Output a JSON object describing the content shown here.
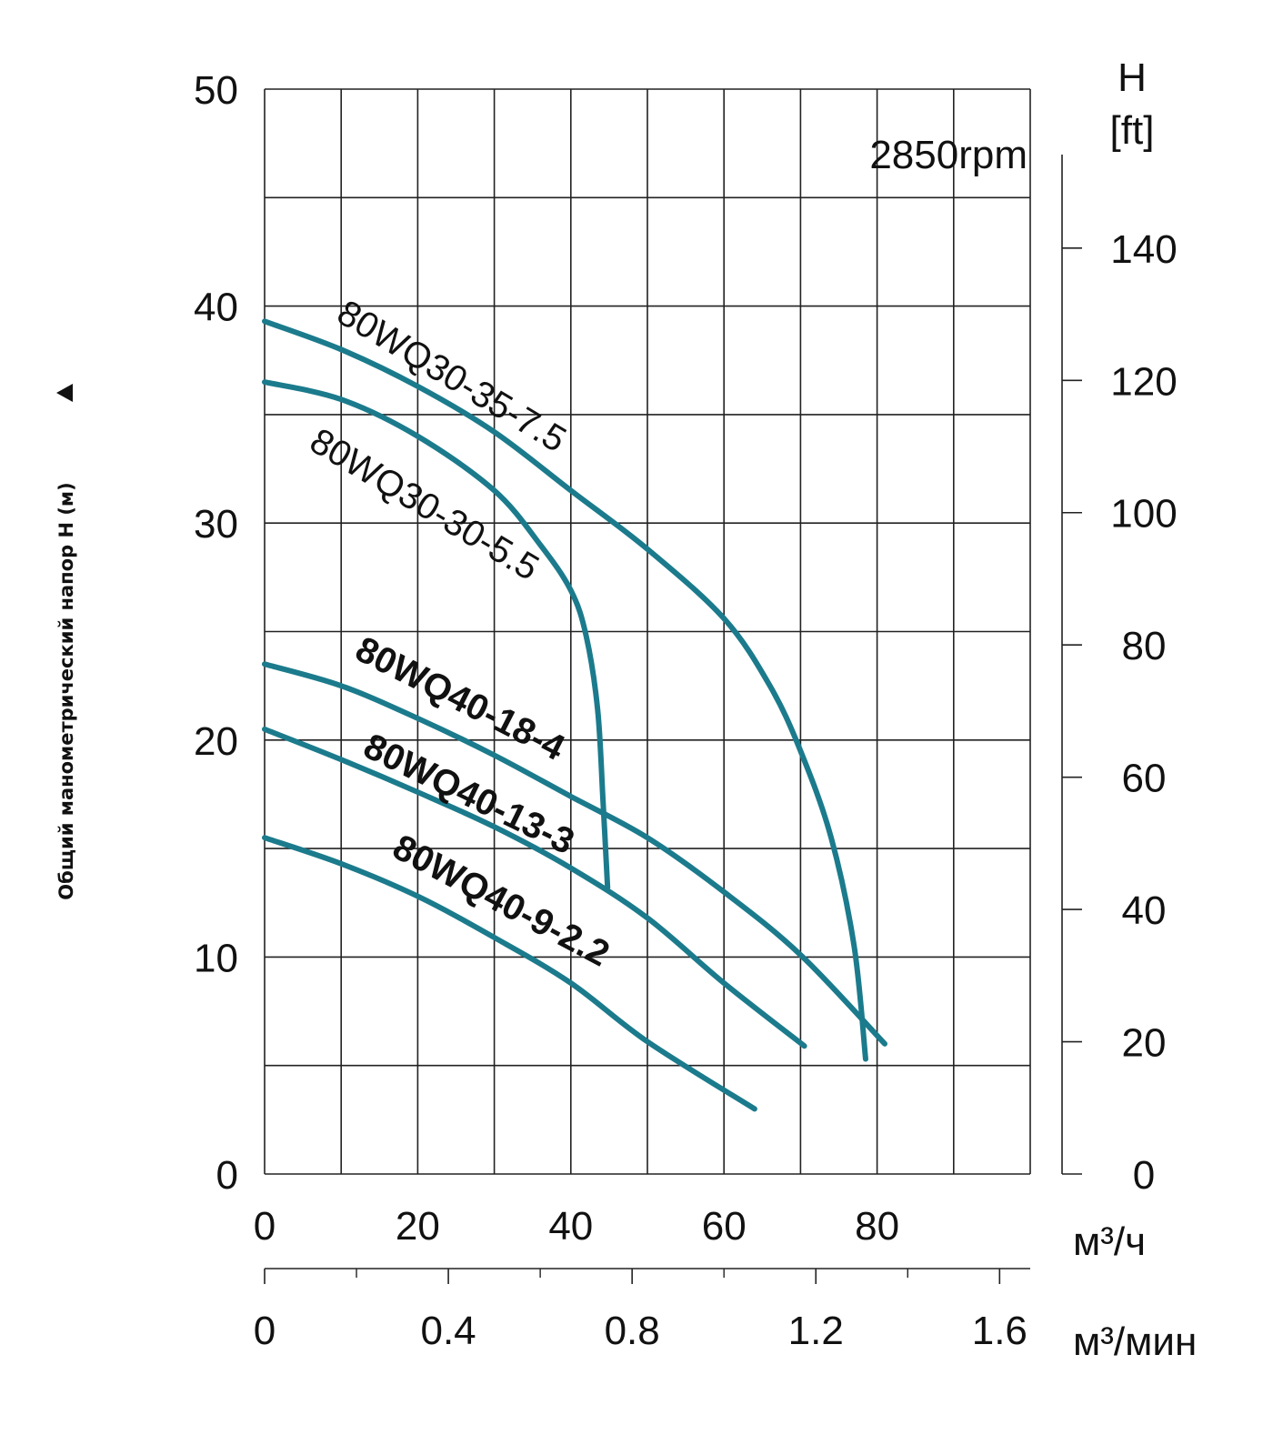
{
  "chart_data": {
    "type": "line",
    "title": "",
    "annotation": "2850rpm",
    "xlabel": "м³/ч",
    "xlabel2": "м³/мин",
    "ylabel": "Общий манометрический напор H (м)",
    "ylabel_right": [
      "H",
      "[ft]"
    ],
    "xlim": [
      0,
      100
    ],
    "ylim": [
      0,
      50
    ],
    "xticks": [
      "0",
      "20",
      "40",
      "60",
      "80"
    ],
    "xticks_values": [
      0,
      20,
      40,
      60,
      80
    ],
    "x2ticks": [
      "0",
      "0.4",
      "0.8",
      "1.2",
      "1.6"
    ],
    "x2ticks_values": [
      0,
      0.4,
      0.8,
      1.2,
      1.6
    ],
    "yticks": [
      "0",
      "10",
      "20",
      "30",
      "40",
      "50"
    ],
    "yticks_values": [
      0,
      10,
      20,
      30,
      40,
      50
    ],
    "y2ticks": [
      "0",
      "20",
      "40",
      "60",
      "80",
      "100",
      "120",
      "140"
    ],
    "y2ticks_values": [
      0,
      20,
      40,
      60,
      80,
      100,
      120,
      140
    ],
    "grid": true,
    "line_color": "#1b7b8c",
    "series": [
      {
        "name": "80WQ30-35-7.5",
        "x": [
          0,
          10,
          20,
          30,
          40,
          50,
          60,
          66,
          70,
          74,
          77,
          78.5
        ],
        "y": [
          39.3,
          38.0,
          36.3,
          34.2,
          31.5,
          28.8,
          25.6,
          22.5,
          19.5,
          15.5,
          10.5,
          5.3
        ]
      },
      {
        "name": "80WQ30-30-5.5",
        "x": [
          0,
          10,
          20,
          30,
          36,
          40,
          42,
          43.5,
          44.2,
          44.8
        ],
        "y": [
          36.5,
          35.7,
          34.0,
          31.5,
          29.0,
          26.9,
          24.8,
          21.4,
          17.2,
          13.2
        ]
      },
      {
        "name": "80WQ40-18-4",
        "x": [
          0,
          10,
          20,
          30,
          40,
          50,
          60,
          70,
          81
        ],
        "y": [
          23.5,
          22.5,
          21.0,
          19.3,
          17.4,
          15.5,
          13.0,
          10.1,
          6.0
        ]
      },
      {
        "name": "80WQ40-13-3",
        "x": [
          0,
          10,
          20,
          30,
          40,
          50,
          60,
          70.5
        ],
        "y": [
          20.5,
          19.1,
          17.6,
          16.0,
          14.1,
          11.8,
          8.8,
          5.9
        ]
      },
      {
        "name": "80WQ40-9-2.2",
        "x": [
          0,
          10,
          20,
          30,
          40,
          50,
          64
        ],
        "y": [
          15.5,
          14.3,
          12.8,
          10.9,
          8.8,
          6.1,
          3.0
        ]
      }
    ]
  }
}
